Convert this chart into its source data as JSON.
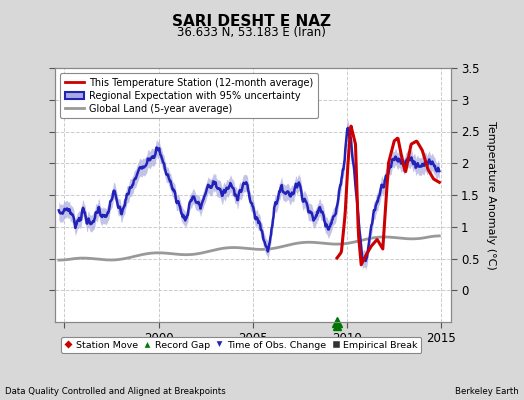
{
  "title": "SARI DESHT E NAZ",
  "subtitle": "36.633 N, 53.183 E (Iran)",
  "ylabel": "Temperature Anomaly (°C)",
  "footer_left": "Data Quality Controlled and Aligned at Breakpoints",
  "footer_right": "Berkeley Earth",
  "xlim": [
    1994.5,
    2015.5
  ],
  "ylim": [
    -0.5,
    3.5
  ],
  "yticks": [
    0.0,
    0.5,
    1.0,
    1.5,
    2.0,
    2.5,
    3.0,
    3.5
  ],
  "xticks": [
    1995,
    2000,
    2005,
    2010,
    2015
  ],
  "xticklabels": [
    "",
    "2000",
    "2005",
    "2010",
    "2015"
  ],
  "bg_color": "#d8d8d8",
  "plot_bg_color": "#ffffff",
  "grid_color": "#cccccc",
  "station_color": "#cc0000",
  "regional_color": "#2222bb",
  "regional_fill_color": "#aaaadd",
  "global_color": "#999999",
  "record_gap_x": 2009.45,
  "legend_items": [
    {
      "label": "This Temperature Station (12-month average)",
      "color": "#cc0000"
    },
    {
      "label": "Regional Expectation with 95% uncertainty",
      "color": "#2222bb"
    },
    {
      "label": "Global Land (5-year average)",
      "color": "#999999"
    }
  ],
  "bottom_legend": [
    {
      "label": "Station Move",
      "marker": "D",
      "color": "#cc0000"
    },
    {
      "label": "Record Gap",
      "marker": "^",
      "color": "#008800"
    },
    {
      "label": "Time of Obs. Change",
      "marker": "v",
      "color": "#2222bb"
    },
    {
      "label": "Empirical Break",
      "marker": "s",
      "color": "#333333"
    }
  ]
}
